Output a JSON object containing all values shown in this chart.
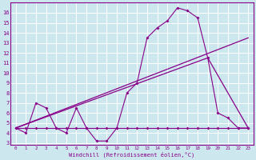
{
  "background_color": "#cce8ee",
  "grid_color": "#ffffff",
  "line_color": "#880088",
  "xlabel": "Windchill (Refroidissement éolien,°C)",
  "yticks": [
    3,
    4,
    5,
    6,
    7,
    8,
    9,
    10,
    11,
    12,
    13,
    14,
    15,
    16
  ],
  "xlim": [
    -0.5,
    23.5
  ],
  "ylim": [
    2.8,
    17.0
  ],
  "xticks": [
    0,
    1,
    2,
    3,
    4,
    5,
    6,
    7,
    8,
    9,
    10,
    11,
    12,
    13,
    14,
    15,
    16,
    17,
    18,
    19,
    20,
    21,
    22,
    23
  ],
  "series1_x": [
    0,
    1,
    2,
    3,
    4,
    5,
    6,
    7,
    8,
    9,
    10,
    11,
    12,
    13,
    14,
    15,
    16,
    17,
    18,
    19,
    20,
    21,
    22,
    23
  ],
  "series1_y": [
    4.5,
    4.0,
    7.0,
    6.5,
    4.5,
    4.0,
    6.5,
    4.5,
    3.2,
    3.2,
    4.5,
    8.0,
    9.0,
    13.5,
    14.5,
    15.2,
    16.5,
    16.2,
    15.5,
    11.5,
    6.0,
    5.5,
    4.5,
    4.5
  ],
  "series2_x": [
    0,
    1,
    2,
    3,
    4,
    5,
    6,
    7,
    8,
    9,
    10,
    11,
    12,
    13,
    14,
    15,
    16,
    17,
    18,
    19,
    20,
    21,
    22,
    23
  ],
  "series2_y": [
    4.5,
    4.5,
    4.5,
    4.5,
    4.5,
    4.5,
    4.5,
    4.5,
    4.5,
    4.5,
    4.5,
    4.5,
    4.5,
    4.5,
    4.5,
    4.5,
    4.5,
    4.5,
    4.5,
    4.5,
    4.5,
    4.5,
    4.5,
    4.5
  ],
  "series3_x": [
    0,
    23
  ],
  "series3_y": [
    4.5,
    13.5
  ],
  "series4_x": [
    0,
    19,
    23
  ],
  "series4_y": [
    4.5,
    11.5,
    4.5
  ]
}
